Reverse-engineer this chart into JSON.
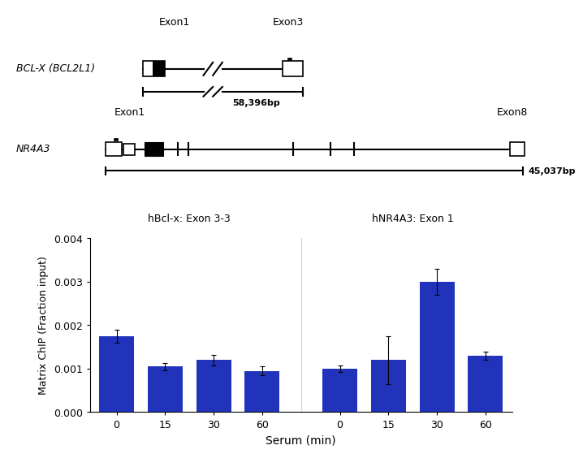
{
  "bar_values": [
    0.00175,
    0.00105,
    0.0012,
    0.00095,
    0.001,
    0.0012,
    0.003,
    0.0013
  ],
  "bar_errors": [
    0.00015,
    8e-05,
    0.00012,
    0.0001,
    8e-05,
    0.00055,
    0.0003,
    0.0001
  ],
  "bar_color": "#2233BB",
  "bar_labels": [
    "0",
    "15",
    "30",
    "60",
    "0",
    "15",
    "30",
    "60"
  ],
  "xlabel": "Serum (min)",
  "ylabel": "Matrix ChIP (Fraction input)",
  "ylim": [
    0,
    0.004
  ],
  "yticks": [
    0.0,
    0.001,
    0.002,
    0.003,
    0.004
  ],
  "title_left": "hBcl-x: Exon 3-3",
  "title_right": "hNR4A3: Exon 1",
  "gene1_label": "BCL-X (BCL2L1)",
  "gene2_label": "NR4A3",
  "bcl_size_label": "58,396bp",
  "nr4a3_size_label": "45,037bp",
  "exon1_label_bcl": "Exon1",
  "exon3_label_bcl": "Exon3",
  "exon1_label_nr4a3": "Exon1",
  "exon8_label_nr4a3": "Exon8"
}
